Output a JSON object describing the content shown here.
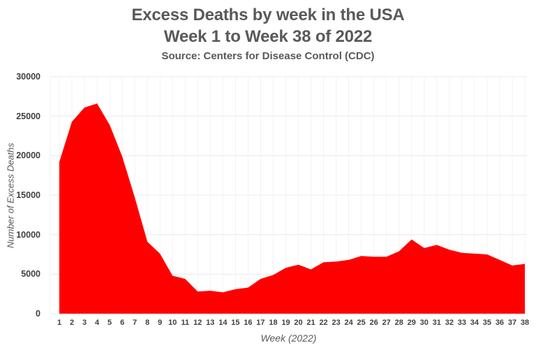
{
  "chart_data": {
    "type": "area",
    "title": "Excess Deaths by week in the USA",
    "subtitle": "Week 1 to Week 38 of 2022",
    "source": "Source: Centers for Disease Control (CDC)",
    "xlabel": "Week (2022)",
    "ylabel": "Number of Excess Deaths",
    "x": [
      1,
      2,
      3,
      4,
      5,
      6,
      7,
      8,
      9,
      10,
      11,
      12,
      13,
      14,
      15,
      16,
      17,
      18,
      19,
      20,
      21,
      22,
      23,
      24,
      25,
      26,
      27,
      28,
      29,
      30,
      31,
      32,
      33,
      34,
      35,
      36,
      37,
      38
    ],
    "values": [
      19200,
      24300,
      26100,
      26600,
      23900,
      19900,
      14700,
      9100,
      7600,
      4800,
      4400,
      2800,
      2900,
      2700,
      3100,
      3300,
      4400,
      4900,
      5800,
      6200,
      5600,
      6500,
      6600,
      6800,
      7300,
      7200,
      7200,
      7900,
      9400,
      8300,
      8700,
      8100,
      7700,
      7600,
      7500,
      6800,
      6100,
      6300
    ],
    "ylim": [
      0,
      30000
    ],
    "ytick_step": 5000,
    "yticks": [
      "0",
      "5000",
      "10000",
      "15000",
      "20000",
      "25000",
      "30000"
    ],
    "grid": true,
    "legend_position": "none",
    "fill_color": "#ff0000",
    "colors": {
      "title_text": "#595959",
      "tick_text": "#404040",
      "h_gridline": "#e9e9e9",
      "v_gridline": "#f3f3f3",
      "background": "#ffffff"
    }
  }
}
